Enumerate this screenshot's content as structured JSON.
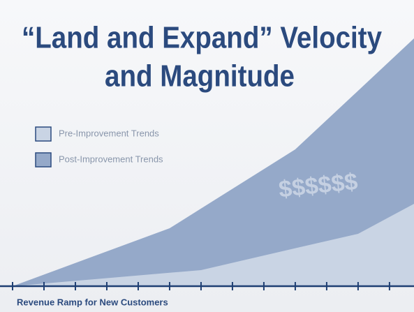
{
  "chart_data": {
    "type": "area",
    "title": [
      "“Land and Expand” Velocity",
      "and Magnitude"
    ],
    "x_label": "Revenue Ramp for New Customers",
    "annotation": "$$$$$$",
    "x": [
      0,
      5,
      6,
      9,
      11,
      12.78
    ],
    "xlim": [
      -0.4,
      12.78
    ],
    "xticks": [
      0,
      1,
      2,
      3,
      4,
      5,
      6,
      7,
      8,
      9,
      10,
      11,
      12
    ],
    "ylim": [
      0,
      102.5
    ],
    "series": [
      {
        "name": "Post-Improvement Trends",
        "color": "#95a9c9",
        "values": [
          0,
          20.75,
          27.8,
          49,
          70,
          88.75
        ]
      },
      {
        "name": "Pre-Improvement Trends",
        "color": "#c9d4e4",
        "values": [
          0,
          4.8,
          5.75,
          13.6,
          18.75,
          29.5
        ]
      }
    ]
  }
}
